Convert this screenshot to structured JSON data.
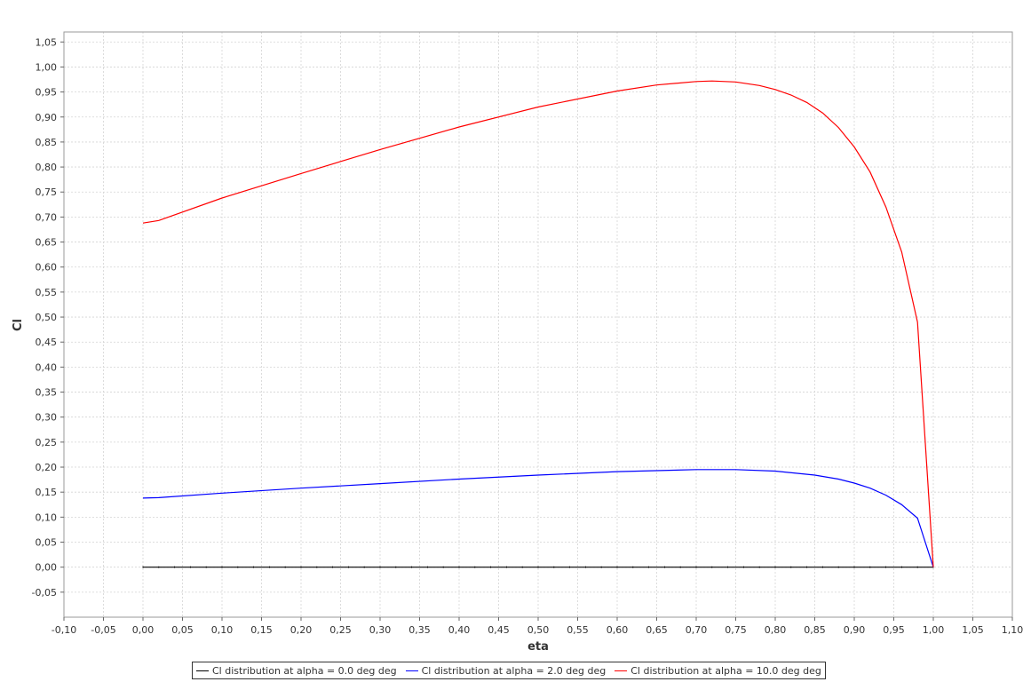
{
  "chart_data": {
    "type": "line",
    "title": "",
    "xlabel": "eta",
    "ylabel": "Cl",
    "xlim": [
      -0.1,
      1.1
    ],
    "ylim": [
      -0.1,
      1.07
    ],
    "x_ticks": [
      "-0,10",
      "-0,05",
      "0,00",
      "0,05",
      "0,10",
      "0,15",
      "0,20",
      "0,25",
      "0,30",
      "0,35",
      "0,40",
      "0,45",
      "0,50",
      "0,55",
      "0,60",
      "0,65",
      "0,70",
      "0,75",
      "0,80",
      "0,85",
      "0,90",
      "0,95",
      "1,00",
      "1,05",
      "1,10"
    ],
    "x_tick_values": [
      -0.1,
      -0.05,
      0.0,
      0.05,
      0.1,
      0.15,
      0.2,
      0.25,
      0.3,
      0.35,
      0.4,
      0.45,
      0.5,
      0.55,
      0.6,
      0.65,
      0.7,
      0.75,
      0.8,
      0.85,
      0.9,
      0.95,
      1.0,
      1.05,
      1.1
    ],
    "y_ticks": [
      "-0,05",
      "0,00",
      "0,05",
      "0,10",
      "0,15",
      "0,20",
      "0,25",
      "0,30",
      "0,35",
      "0,40",
      "0,45",
      "0,50",
      "0,55",
      "0,60",
      "0,65",
      "0,70",
      "0,75",
      "0,80",
      "0,85",
      "0,90",
      "0,95",
      "1,00",
      "1,05"
    ],
    "y_tick_values": [
      -0.05,
      0.0,
      0.05,
      0.1,
      0.15,
      0.2,
      0.25,
      0.3,
      0.35,
      0.4,
      0.45,
      0.5,
      0.55,
      0.6,
      0.65,
      0.7,
      0.75,
      0.8,
      0.85,
      0.9,
      0.95,
      1.0,
      1.05
    ],
    "grid": true,
    "legend_position": "bottom",
    "series": [
      {
        "name": "Cl distribution at alpha = 0.0 deg deg",
        "color": "#000000",
        "x": [
          0.0,
          0.1,
          0.2,
          0.3,
          0.4,
          0.5,
          0.6,
          0.7,
          0.8,
          0.9,
          1.0
        ],
        "y": [
          0.0,
          0.0,
          0.0,
          0.0,
          0.0,
          0.0,
          0.0,
          0.0,
          0.0,
          0.0,
          0.0
        ]
      },
      {
        "name": "Cl distribution at alpha = 2.0 deg deg",
        "color": "#0000ff",
        "x": [
          0.0,
          0.02,
          0.1,
          0.2,
          0.3,
          0.4,
          0.5,
          0.6,
          0.7,
          0.75,
          0.8,
          0.85,
          0.88,
          0.9,
          0.92,
          0.94,
          0.96,
          0.98,
          1.0
        ],
        "y": [
          0.138,
          0.139,
          0.148,
          0.158,
          0.167,
          0.176,
          0.184,
          0.191,
          0.195,
          0.195,
          0.192,
          0.184,
          0.176,
          0.168,
          0.158,
          0.144,
          0.125,
          0.098,
          0.0
        ]
      },
      {
        "name": "Cl distribution at alpha = 10.0 deg deg",
        "color": "#ff0000",
        "x": [
          0.0,
          0.02,
          0.1,
          0.2,
          0.3,
          0.4,
          0.5,
          0.6,
          0.65,
          0.7,
          0.72,
          0.75,
          0.78,
          0.8,
          0.82,
          0.84,
          0.86,
          0.88,
          0.9,
          0.92,
          0.94,
          0.96,
          0.98,
          1.0
        ],
        "y": [
          0.688,
          0.693,
          0.738,
          0.787,
          0.835,
          0.88,
          0.92,
          0.952,
          0.964,
          0.971,
          0.972,
          0.97,
          0.963,
          0.955,
          0.944,
          0.929,
          0.908,
          0.879,
          0.84,
          0.79,
          0.72,
          0.63,
          0.49,
          0.0
        ]
      }
    ]
  }
}
